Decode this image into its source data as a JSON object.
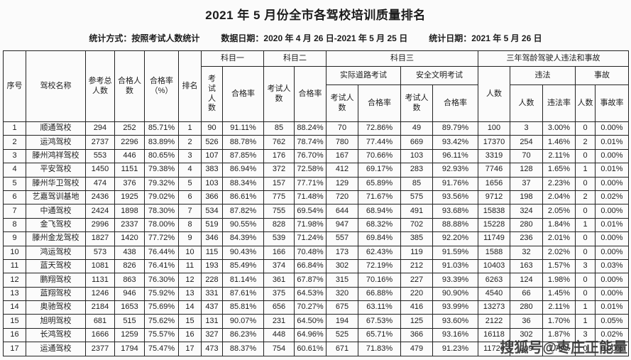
{
  "page": {
    "title": "2021 年 5 月份全市各驾校培训质量排名",
    "stats_method": "统计方式：按照考试人数统计",
    "data_date": "数据日期：2020 年 4 月 26 日-2021 年 5 月 25 日",
    "stats_date": "统计日期：2021 年 5 月 26 日",
    "watermark": "搜狐号@枣庄正能量"
  },
  "table": {
    "headers": {
      "xu_hao": "序号",
      "jiaxiao_mingcheng": "驾校名称",
      "cankao_zongrenshu": "参考总人数",
      "hege_renshu": "合格人数",
      "hegelv_pct": "合格率（%）",
      "paiming": "排名",
      "kemu1": "科目一",
      "kemu2": "科目二",
      "kemu3": "科目三",
      "sannian": "三年驾龄驾驶人违法和事故",
      "kaoshi_renshu": "考试人数",
      "hegelv": "合格率",
      "shiji_daolu": "实际道路考试",
      "anquan_wenming": "安全文明考试",
      "renshu": "人数",
      "weifa": "违法",
      "shigu": "事故",
      "weifalv": "违法率",
      "shigulv": "事故率"
    },
    "rows": [
      [
        "1",
        "顺通驾校",
        "294",
        "252",
        "85.71%",
        "1",
        "90",
        "91.11%",
        "85",
        "88.24%",
        "70",
        "72.86%",
        "49",
        "89.79%",
        "100",
        "3",
        "3.00%",
        "0",
        "0.00%"
      ],
      [
        "2",
        "运鸿驾校",
        "2737",
        "2296",
        "83.89%",
        "2",
        "526",
        "88.78%",
        "762",
        "78.74%",
        "780",
        "77.44%",
        "669",
        "93.42%",
        "17370",
        "254",
        "1.46%",
        "2",
        "0.01%"
      ],
      [
        "3",
        "滕州鸿祥驾校",
        "553",
        "446",
        "80.65%",
        "3",
        "107",
        "87.85%",
        "176",
        "76.70%",
        "167",
        "70.66%",
        "103",
        "96.11%",
        "3319",
        "70",
        "2.11%",
        "0",
        "0.00%"
      ],
      [
        "4",
        "平安驾校",
        "1450",
        "1151",
        "79.38%",
        "4",
        "383",
        "86.94%",
        "372",
        "72.58%",
        "412",
        "69.17%",
        "283",
        "92.93%",
        "7746",
        "128",
        "1.65%",
        "1",
        "0.01%"
      ],
      [
        "5",
        "滕州华卫驾校",
        "474",
        "376",
        "79.32%",
        "5",
        "103",
        "88.34%",
        "157",
        "77.71%",
        "129",
        "65.89%",
        "85",
        "91.76%",
        "1656",
        "37",
        "2.23%",
        "0",
        "0.00%"
      ],
      [
        "6",
        "艺嘉驾训基地",
        "2436",
        "1925",
        "79.02%",
        "6",
        "366",
        "86.61%",
        "775",
        "71.48%",
        "720",
        "71.67%",
        "575",
        "93.56%",
        "9712",
        "198",
        "2.04%",
        "2",
        "0.02%"
      ],
      [
        "7",
        "中通驾校",
        "2424",
        "1898",
        "78.30%",
        "7",
        "534",
        "87.82%",
        "755",
        "69.54%",
        "644",
        "68.94%",
        "491",
        "93.68%",
        "15838",
        "324",
        "2.05%",
        "0",
        "0.00%"
      ],
      [
        "8",
        "金飞驾校",
        "2996",
        "2337",
        "78.00%",
        "8",
        "519",
        "90.55%",
        "828",
        "71.98%",
        "947",
        "68.32%",
        "702",
        "88.88%",
        "15228",
        "280",
        "1.84%",
        "1",
        "0.01%"
      ],
      [
        "9",
        "滕州金龙驾校",
        "1827",
        "1420",
        "77.72%",
        "9",
        "346",
        "84.39%",
        "539",
        "71.24%",
        "557",
        "69.84%",
        "385",
        "92.20%",
        "11749",
        "236",
        "2.01%",
        "0",
        "0.00%"
      ],
      [
        "10",
        "鸿运驾校",
        "573",
        "438",
        "76.44%",
        "10",
        "115",
        "90.43%",
        "166",
        "70.48%",
        "173",
        "62.43%",
        "119",
        "91.59%",
        "1588",
        "32",
        "2.02%",
        "0",
        "0.00%"
      ],
      [
        "11",
        "蓝天驾校",
        "1081",
        "826",
        "76.41%",
        "11",
        "193",
        "85.49%",
        "374",
        "66.84%",
        "302",
        "72.19%",
        "212",
        "91.03%",
        "10403",
        "163",
        "1.57%",
        "3",
        "0.03%"
      ],
      [
        "12",
        "鹏翔驾校",
        "1131",
        "863",
        "76.30%",
        "12",
        "228",
        "81.14%",
        "361",
        "67.87%",
        "315",
        "70.16%",
        "227",
        "93.39%",
        "6263",
        "124",
        "1.98%",
        "0",
        "0.00%"
      ],
      [
        "13",
        "蓝翔驾校",
        "1246",
        "946",
        "75.92%",
        "13",
        "331",
        "87.61%",
        "375",
        "64.53%",
        "320",
        "66.88%",
        "220",
        "90.90%",
        "4540",
        "66",
        "1.45%",
        "0",
        "0.00%"
      ],
      [
        "14",
        "奥驰驾校",
        "2184",
        "1653",
        "75.69%",
        "14",
        "437",
        "85.81%",
        "656",
        "70.27%",
        "675",
        "63.11%",
        "416",
        "93.99%",
        "13273",
        "280",
        "2.11%",
        "1",
        "0.01%"
      ],
      [
        "15",
        "旭明驾校",
        "681",
        "515",
        "75.62%",
        "15",
        "131",
        "90.07%",
        "231",
        "64.50%",
        "194",
        "67.53%",
        "125",
        "93.60%",
        "2122",
        "36",
        "1.70%",
        "1",
        "0.05%"
      ],
      [
        "16",
        "长鸿驾校",
        "1666",
        "1259",
        "75.57%",
        "16",
        "327",
        "86.23%",
        "448",
        "64.96%",
        "525",
        "65.71%",
        "366",
        "93.16%",
        "16118",
        "302",
        "1.87%",
        "3",
        "0.02%"
      ],
      [
        "17",
        "运通驾校",
        "2377",
        "1794",
        "75.47%",
        "17",
        "473",
        "88.37%",
        "754",
        "60.61%",
        "671",
        "71.83%",
        "479",
        "91.23%",
        "11726",
        "209",
        "1.78%",
        "0",
        "0.00%"
      ]
    ]
  }
}
